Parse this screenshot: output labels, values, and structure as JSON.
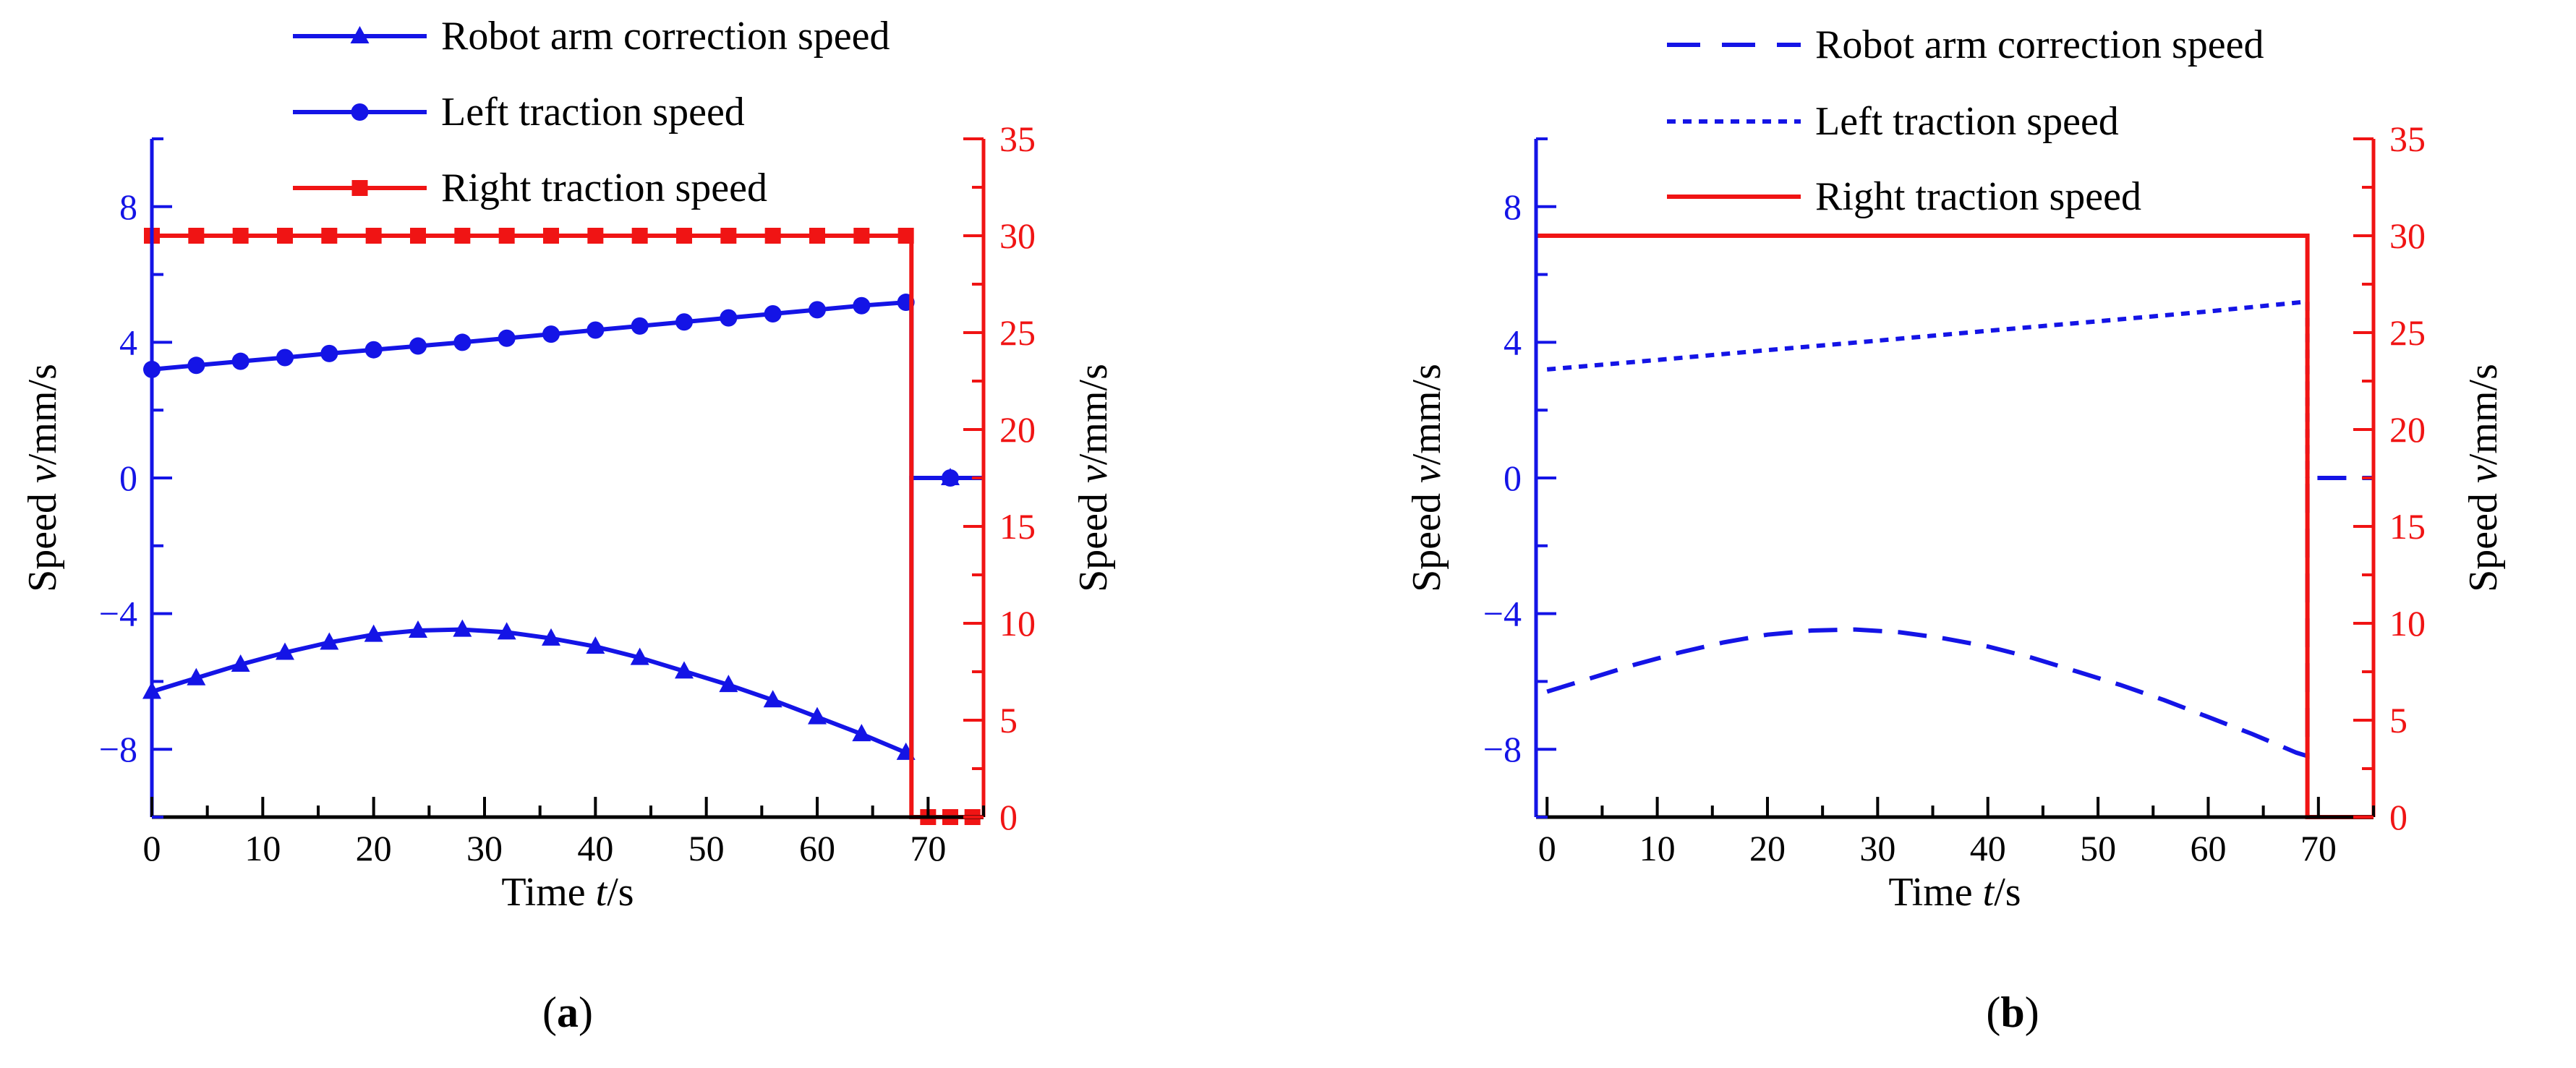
{
  "colors": {
    "blue": "#1414e6",
    "red": "#f01414",
    "axis_black": "#000000"
  },
  "chart_data": [
    {
      "type": "line",
      "panel_label": "(a)",
      "panel_letter": "a",
      "style": "markers",
      "xlabel": {
        "prefix": "Time ",
        "var": "t",
        "suffix": "/s"
      },
      "ylabel_left": {
        "prefix": "Speed ",
        "var": "v",
        "suffix": "/mm/s"
      },
      "ylabel_right": {
        "prefix": "Speed ",
        "var": "v",
        "suffix": "/mm/s"
      },
      "xlim": [
        0,
        75
      ],
      "ylim_left": [
        -10,
        10
      ],
      "ylim_right": [
        0,
        35
      ],
      "x_ticks": [
        0,
        10,
        20,
        30,
        40,
        50,
        60,
        70
      ],
      "x_tick_labels": [
        "0",
        "10",
        "20",
        "30",
        "40",
        "50",
        "60",
        "70"
      ],
      "y_left_ticks": [
        -8,
        -4,
        0,
        4,
        8
      ],
      "y_left_tick_labels": [
        "−8",
        "−4",
        "0",
        "4",
        "8"
      ],
      "y_right_ticks": [
        0,
        5,
        10,
        15,
        20,
        25,
        30,
        35
      ],
      "y_right_tick_labels": [
        "0",
        "5",
        "10",
        "15",
        "20",
        "25",
        "30",
        "35"
      ],
      "legend": [
        "Robot arm correction speed",
        "Left traction speed",
        "Right traction speed"
      ],
      "series": [
        {
          "name": "Robot arm correction speed",
          "axis": "left",
          "marker": "triangle",
          "dash": "solid",
          "x": [
            0,
            4,
            8,
            12,
            16,
            20,
            24,
            28,
            32,
            36,
            40,
            44,
            48,
            52,
            56,
            60,
            64,
            68,
            68.5,
            68.5,
            72,
            75
          ],
          "y": [
            -6.3,
            -5.9,
            -5.5,
            -5.15,
            -4.85,
            -4.62,
            -4.5,
            -4.47,
            -4.55,
            -4.73,
            -4.97,
            -5.3,
            -5.7,
            -6.1,
            -6.55,
            -7.05,
            -7.55,
            -8.1,
            -8.2,
            0,
            0,
            0
          ],
          "markers_x": [
            0,
            4,
            8,
            12,
            16,
            20,
            24,
            28,
            32,
            36,
            40,
            44,
            48,
            52,
            56,
            60,
            64,
            68,
            72
          ],
          "markers_y": [
            -6.3,
            -5.9,
            -5.5,
            -5.15,
            -4.85,
            -4.62,
            -4.5,
            -4.47,
            -4.55,
            -4.73,
            -4.97,
            -5.3,
            -5.7,
            -6.1,
            -6.55,
            -7.05,
            -7.55,
            -8.1,
            0
          ]
        },
        {
          "name": "Left traction speed",
          "axis": "left",
          "marker": "circle",
          "dash": "solid",
          "x": [
            0,
            4,
            8,
            12,
            16,
            20,
            24,
            28,
            32,
            36,
            40,
            44,
            48,
            52,
            56,
            60,
            64,
            68,
            68.5,
            68.5,
            72,
            75
          ],
          "y": [
            3.2,
            3.32,
            3.44,
            3.55,
            3.67,
            3.78,
            3.89,
            4.0,
            4.12,
            4.24,
            4.36,
            4.48,
            4.6,
            4.72,
            4.84,
            4.96,
            5.08,
            5.18,
            5.2,
            0,
            0,
            0
          ],
          "markers_x": [
            0,
            4,
            8,
            12,
            16,
            20,
            24,
            28,
            32,
            36,
            40,
            44,
            48,
            52,
            56,
            60,
            64,
            68,
            72
          ],
          "markers_y": [
            3.2,
            3.32,
            3.44,
            3.55,
            3.67,
            3.78,
            3.89,
            4.0,
            4.12,
            4.24,
            4.36,
            4.48,
            4.6,
            4.72,
            4.84,
            4.96,
            5.08,
            5.18,
            0
          ]
        },
        {
          "name": "Right traction speed",
          "axis": "right",
          "marker": "square",
          "dash": "solid",
          "x": [
            0,
            68.5,
            68.5,
            75
          ],
          "y": [
            30,
            30,
            0,
            0
          ],
          "markers_x": [
            0,
            4,
            8,
            12,
            16,
            20,
            24,
            28,
            32,
            36,
            40,
            44,
            48,
            52,
            56,
            60,
            64,
            68,
            70,
            72,
            74
          ],
          "markers_y": [
            30,
            30,
            30,
            30,
            30,
            30,
            30,
            30,
            30,
            30,
            30,
            30,
            30,
            30,
            30,
            30,
            30,
            30,
            0,
            0,
            0
          ]
        }
      ]
    },
    {
      "type": "line",
      "panel_label": "(b)",
      "panel_letter": "b",
      "style": "dashes",
      "xlabel": {
        "prefix": "Time ",
        "var": "t",
        "suffix": "/s"
      },
      "ylabel_left": {
        "prefix": "Speed ",
        "var": "v",
        "suffix": "/mm/s"
      },
      "ylabel_right": {
        "prefix": "Speed ",
        "var": "v",
        "suffix": "/mm/s"
      },
      "xlim": [
        -1,
        75
      ],
      "ylim_left": [
        -10,
        10
      ],
      "ylim_right": [
        0,
        35
      ],
      "x_ticks": [
        0,
        10,
        20,
        30,
        40,
        50,
        60,
        70
      ],
      "x_tick_labels": [
        "0",
        "10",
        "20",
        "30",
        "40",
        "50",
        "60",
        "70"
      ],
      "y_left_ticks": [
        -8,
        -4,
        0,
        4,
        8
      ],
      "y_left_tick_labels": [
        "−8",
        "−4",
        "0",
        "4",
        "8"
      ],
      "y_right_ticks": [
        0,
        5,
        10,
        15,
        20,
        25,
        30,
        35
      ],
      "y_right_tick_labels": [
        "0",
        "5",
        "10",
        "15",
        "20",
        "25",
        "30",
        "35"
      ],
      "legend": [
        "Robot arm correction speed",
        "Left traction speed",
        "Right traction speed"
      ],
      "series": [
        {
          "name": "Robot arm correction speed",
          "axis": "left",
          "marker": "none",
          "dash": "long",
          "x": [
            0,
            4,
            8,
            12,
            16,
            20,
            24,
            28,
            32,
            36,
            40,
            44,
            48,
            52,
            56,
            60,
            64,
            68,
            69,
            69,
            72,
            75
          ],
          "y": [
            -6.3,
            -5.9,
            -5.5,
            -5.15,
            -4.85,
            -4.62,
            -4.5,
            -4.47,
            -4.55,
            -4.73,
            -4.97,
            -5.3,
            -5.7,
            -6.1,
            -6.55,
            -7.05,
            -7.55,
            -8.1,
            -8.2,
            0,
            0,
            0
          ]
        },
        {
          "name": "Left traction speed",
          "axis": "left",
          "marker": "none",
          "dash": "short",
          "x": [
            0,
            10,
            20,
            30,
            40,
            50,
            60,
            69,
            69
          ],
          "y": [
            3.2,
            3.48,
            3.77,
            4.05,
            4.34,
            4.62,
            4.91,
            5.2,
            0
          ]
        },
        {
          "name": "Right traction speed",
          "axis": "right",
          "marker": "none",
          "dash": "solid",
          "x": [
            -1,
            69,
            69,
            75
          ],
          "y": [
            30,
            30,
            0,
            0
          ]
        }
      ]
    }
  ]
}
